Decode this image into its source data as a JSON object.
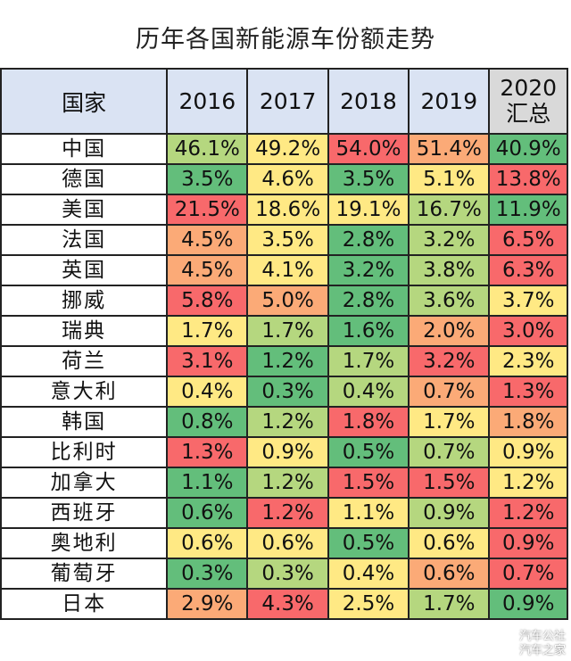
{
  "title": "历年各国新能源车份额走势",
  "watermark": [
    "汽车公社",
    "汽车之家"
  ],
  "colors": {
    "G": "#63be7b",
    "LG": "#b5d77f",
    "Y": "#ffe984",
    "O": "#fbaa77",
    "R": "#f8696b"
  },
  "chart_data": {
    "type": "heatmap",
    "title": "历年各国新能源车份额走势",
    "headers": [
      "国家",
      "2016",
      "2017",
      "2018",
      "2019",
      "2020 汇总"
    ],
    "header_row_label": "国家",
    "header_last": [
      "2020",
      "汇总"
    ],
    "rows": [
      {
        "country": "中国",
        "values": [
          "46.1%",
          "49.2%",
          "54.0%",
          "51.4%",
          "40.9%"
        ],
        "scale": [
          "LG",
          "Y",
          "R",
          "O",
          "G"
        ]
      },
      {
        "country": "德国",
        "values": [
          "3.5%",
          "4.6%",
          "3.5%",
          "5.1%",
          "13.8%"
        ],
        "scale": [
          "G",
          "Y",
          "G",
          "Y",
          "R"
        ]
      },
      {
        "country": "美国",
        "values": [
          "21.5%",
          "18.6%",
          "19.1%",
          "16.7%",
          "11.9%"
        ],
        "scale": [
          "R",
          "Y",
          "Y",
          "LG",
          "G"
        ]
      },
      {
        "country": "法国",
        "values": [
          "4.5%",
          "3.5%",
          "2.8%",
          "3.2%",
          "6.5%"
        ],
        "scale": [
          "O",
          "Y",
          "G",
          "LG",
          "R"
        ]
      },
      {
        "country": "英国",
        "values": [
          "4.5%",
          "4.1%",
          "3.2%",
          "3.8%",
          "6.3%"
        ],
        "scale": [
          "O",
          "Y",
          "G",
          "LG",
          "R"
        ]
      },
      {
        "country": "挪威",
        "values": [
          "5.8%",
          "5.0%",
          "2.8%",
          "3.6%",
          "3.7%"
        ],
        "scale": [
          "R",
          "O",
          "G",
          "LG",
          "Y"
        ]
      },
      {
        "country": "瑞典",
        "values": [
          "1.7%",
          "1.7%",
          "1.6%",
          "2.0%",
          "3.0%"
        ],
        "scale": [
          "Y",
          "LG",
          "G",
          "O",
          "R"
        ]
      },
      {
        "country": "荷兰",
        "values": [
          "3.1%",
          "1.2%",
          "1.7%",
          "3.2%",
          "2.3%"
        ],
        "scale": [
          "R",
          "G",
          "LG",
          "R",
          "Y"
        ]
      },
      {
        "country": "意大利",
        "values": [
          "0.4%",
          "0.3%",
          "0.4%",
          "0.7%",
          "1.3%"
        ],
        "scale": [
          "Y",
          "G",
          "LG",
          "O",
          "R"
        ]
      },
      {
        "country": "韩国",
        "values": [
          "0.8%",
          "1.2%",
          "1.8%",
          "1.7%",
          "1.8%"
        ],
        "scale": [
          "G",
          "LG",
          "R",
          "Y",
          "O"
        ]
      },
      {
        "country": "比利时",
        "values": [
          "1.3%",
          "0.9%",
          "0.5%",
          "0.7%",
          "0.9%"
        ],
        "scale": [
          "R",
          "Y",
          "G",
          "LG",
          "Y"
        ]
      },
      {
        "country": "加拿大",
        "values": [
          "1.1%",
          "1.2%",
          "1.5%",
          "1.5%",
          "1.2%"
        ],
        "scale": [
          "G",
          "LG",
          "R",
          "R",
          "Y"
        ]
      },
      {
        "country": "西班牙",
        "values": [
          "0.6%",
          "1.2%",
          "1.1%",
          "0.9%",
          "1.2%"
        ],
        "scale": [
          "G",
          "R",
          "Y",
          "LG",
          "R"
        ]
      },
      {
        "country": "奥地利",
        "values": [
          "0.6%",
          "0.6%",
          "0.5%",
          "0.6%",
          "0.9%"
        ],
        "scale": [
          "Y",
          "Y",
          "G",
          "Y",
          "R"
        ]
      },
      {
        "country": "葡萄牙",
        "values": [
          "0.3%",
          "0.3%",
          "0.4%",
          "0.6%",
          "0.7%"
        ],
        "scale": [
          "G",
          "LG",
          "Y",
          "O",
          "R"
        ]
      },
      {
        "country": "日本",
        "values": [
          "2.9%",
          "4.3%",
          "2.5%",
          "1.7%",
          "0.9%"
        ],
        "scale": [
          "O",
          "R",
          "Y",
          "LG",
          "G"
        ]
      }
    ]
  }
}
